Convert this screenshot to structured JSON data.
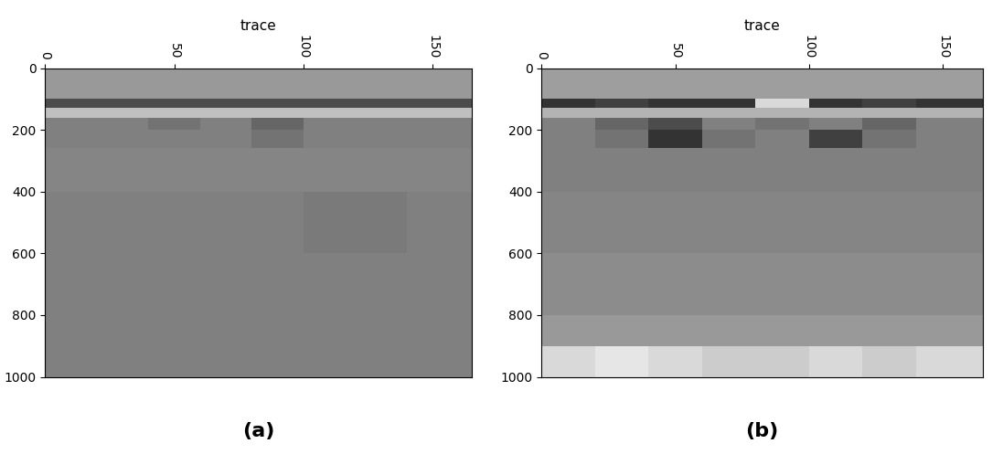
{
  "chart_data": [
    {
      "type": "heatmap",
      "label": "(a)",
      "xlabel": "trace",
      "color": "gray",
      "xlim": [
        0,
        165
      ],
      "ylim": [
        1000,
        0
      ],
      "xticks": [
        0,
        50,
        100,
        150
      ],
      "yticks": [
        0,
        200,
        400,
        600,
        800,
        1000
      ],
      "value_range": [
        0,
        1
      ],
      "x_edges": [
        0,
        20,
        40,
        60,
        80,
        100,
        120,
        140,
        165
      ],
      "y_edges": [
        0,
        100,
        130,
        160,
        200,
        260,
        400,
        600,
        800,
        900,
        1000
      ],
      "cells": [
        [
          0.6,
          0.6,
          0.6,
          0.6,
          0.6,
          0.6,
          0.6,
          0.6
        ],
        [
          0.3,
          0.3,
          0.3,
          0.3,
          0.3,
          0.3,
          0.3,
          0.3
        ],
        [
          0.75,
          0.75,
          0.75,
          0.75,
          0.75,
          0.75,
          0.75,
          0.75
        ],
        [
          0.5,
          0.5,
          0.45,
          0.5,
          0.4,
          0.5,
          0.5,
          0.5
        ],
        [
          0.5,
          0.5,
          0.5,
          0.5,
          0.45,
          0.5,
          0.5,
          0.5
        ],
        [
          0.52,
          0.52,
          0.52,
          0.52,
          0.52,
          0.52,
          0.52,
          0.52
        ],
        [
          0.5,
          0.5,
          0.5,
          0.5,
          0.5,
          0.48,
          0.48,
          0.5
        ],
        [
          0.5,
          0.5,
          0.5,
          0.5,
          0.5,
          0.5,
          0.5,
          0.5
        ],
        [
          0.5,
          0.5,
          0.5,
          0.5,
          0.5,
          0.5,
          0.5,
          0.5
        ],
        [
          0.5,
          0.5,
          0.5,
          0.5,
          0.5,
          0.5,
          0.5,
          0.5
        ]
      ]
    },
    {
      "type": "heatmap",
      "label": "(b)",
      "xlabel": "trace",
      "color": "gray",
      "xlim": [
        0,
        165
      ],
      "ylim": [
        1000,
        0
      ],
      "xticks": [
        0,
        50,
        100,
        150
      ],
      "yticks": [
        0,
        200,
        400,
        600,
        800,
        1000
      ],
      "value_range": [
        0,
        1
      ],
      "x_edges": [
        0,
        20,
        40,
        60,
        80,
        100,
        120,
        140,
        165
      ],
      "y_edges": [
        0,
        100,
        130,
        160,
        200,
        260,
        400,
        600,
        800,
        900,
        1000
      ],
      "cells": [
        [
          0.62,
          0.62,
          0.62,
          0.62,
          0.62,
          0.62,
          0.62,
          0.62
        ],
        [
          0.2,
          0.25,
          0.2,
          0.2,
          0.85,
          0.2,
          0.25,
          0.2
        ],
        [
          0.7,
          0.7,
          0.7,
          0.7,
          0.7,
          0.7,
          0.7,
          0.7
        ],
        [
          0.5,
          0.4,
          0.3,
          0.5,
          0.45,
          0.5,
          0.4,
          0.5
        ],
        [
          0.5,
          0.45,
          0.2,
          0.45,
          0.5,
          0.25,
          0.45,
          0.5
        ],
        [
          0.5,
          0.5,
          0.5,
          0.5,
          0.5,
          0.5,
          0.5,
          0.5
        ],
        [
          0.52,
          0.52,
          0.52,
          0.52,
          0.52,
          0.52,
          0.52,
          0.52
        ],
        [
          0.55,
          0.55,
          0.55,
          0.55,
          0.55,
          0.55,
          0.55,
          0.55
        ],
        [
          0.6,
          0.6,
          0.6,
          0.6,
          0.6,
          0.6,
          0.6,
          0.6
        ],
        [
          0.85,
          0.9,
          0.85,
          0.8,
          0.8,
          0.85,
          0.8,
          0.85
        ]
      ]
    }
  ]
}
